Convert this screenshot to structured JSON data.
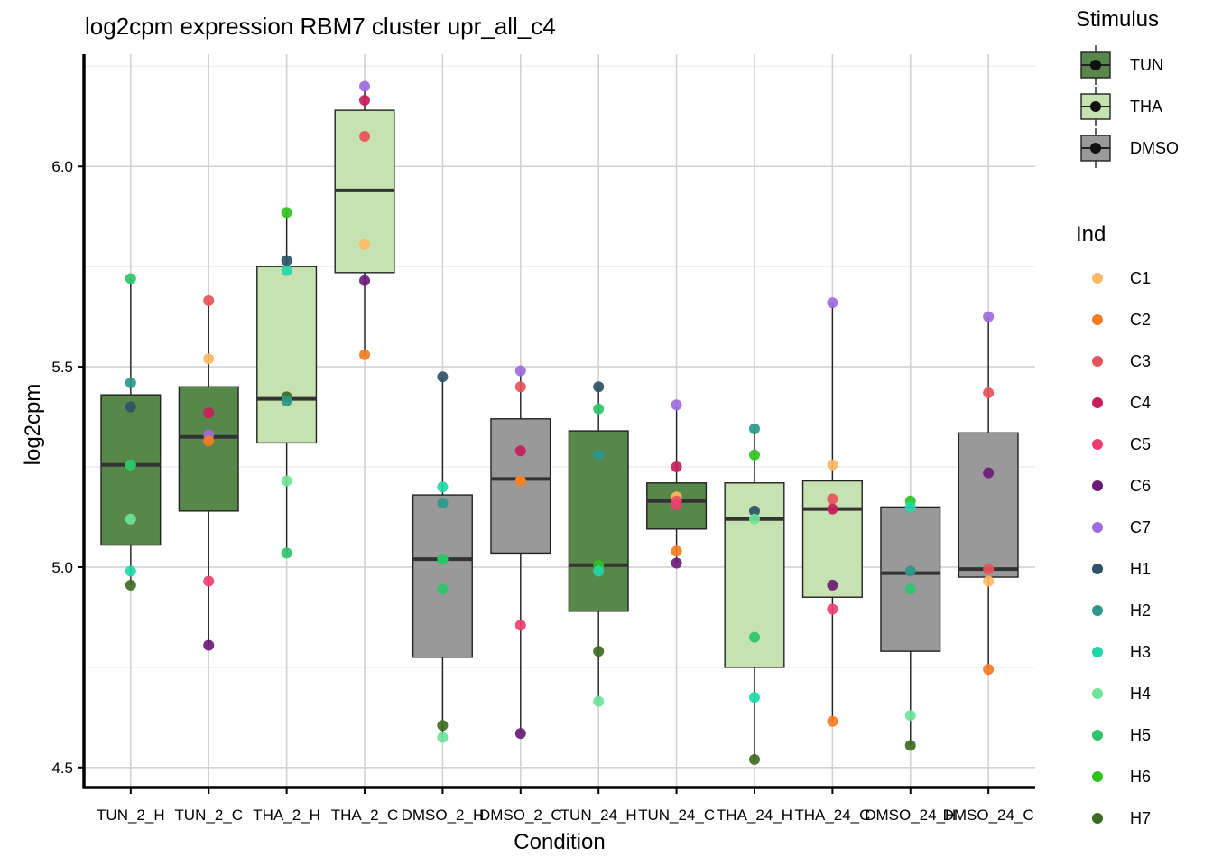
{
  "chart_data": {
    "type": "boxplot",
    "title": "log2cpm expression RBM7 cluster upr_all_c4",
    "xlabel": "Condition",
    "ylabel": "log2cpm",
    "ylim": [
      4.45,
      6.28
    ],
    "y_ticks": [
      4.5,
      5.0,
      5.5,
      6.0
    ],
    "y_tick_labels": [
      "4.5",
      "5.0",
      "5.5",
      "6.0"
    ],
    "categories": [
      "TUN_2_H",
      "TUN_2_C",
      "THA_2_H",
      "THA_2_C",
      "DMSO_2_H",
      "DMSO_2_C",
      "TUN_24_H",
      "TUN_24_C",
      "THA_24_H",
      "THA_24_C",
      "DMSO_24_H",
      "DMSO_24_C"
    ],
    "stimulus_legend": {
      "title": "Stimulus",
      "items": [
        {
          "name": "TUN",
          "color": "#57874A"
        },
        {
          "name": "THA",
          "color": "#C6E2B0"
        },
        {
          "name": "DMSO",
          "color": "#999999"
        }
      ]
    },
    "ind_legend": {
      "title": "Ind",
      "items": [
        {
          "name": "C1",
          "color": "#FDB863"
        },
        {
          "name": "C2",
          "color": "#F47D23"
        },
        {
          "name": "C3",
          "color": "#E8525A"
        },
        {
          "name": "C4",
          "color": "#C81D5A"
        },
        {
          "name": "C5",
          "color": "#EE3F70"
        },
        {
          "name": "C6",
          "color": "#6A1B78"
        },
        {
          "name": "C7",
          "color": "#9E6BDE"
        },
        {
          "name": "H1",
          "color": "#2F5366"
        },
        {
          "name": "H2",
          "color": "#2B9889"
        },
        {
          "name": "H3",
          "color": "#1FD8A8"
        },
        {
          "name": "H4",
          "color": "#6EE39A"
        },
        {
          "name": "H5",
          "color": "#2DC46A"
        },
        {
          "name": "H6",
          "color": "#2EC41E"
        },
        {
          "name": "H7",
          "color": "#3E6B24"
        }
      ]
    },
    "boxes": [
      {
        "category": "TUN_2_H",
        "stimulus": "TUN",
        "min": 4.955,
        "q1": 5.055,
        "median": 5.255,
        "q3": 5.43,
        "max": 5.72
      },
      {
        "category": "TUN_2_C",
        "stimulus": "TUN",
        "min": 4.805,
        "q1": 5.14,
        "median": 5.325,
        "q3": 5.45,
        "max": 5.665
      },
      {
        "category": "THA_2_H",
        "stimulus": "THA",
        "min": 5.035,
        "q1": 5.31,
        "median": 5.42,
        "q3": 5.75,
        "max": 5.885
      },
      {
        "category": "THA_2_C",
        "stimulus": "THA",
        "min": 5.53,
        "q1": 5.735,
        "median": 5.94,
        "q3": 6.14,
        "max": 6.2
      },
      {
        "category": "DMSO_2_H",
        "stimulus": "DMSO",
        "min": 4.575,
        "q1": 4.775,
        "median": 5.02,
        "q3": 5.18,
        "max": 5.475
      },
      {
        "category": "DMSO_2_C",
        "stimulus": "DMSO",
        "min": 4.585,
        "q1": 5.035,
        "median": 5.22,
        "q3": 5.37,
        "max": 5.49
      },
      {
        "category": "TUN_24_H",
        "stimulus": "TUN",
        "min": 4.665,
        "q1": 4.89,
        "median": 5.005,
        "q3": 5.34,
        "max": 5.45
      },
      {
        "category": "TUN_24_C",
        "stimulus": "TUN",
        "min": 5.01,
        "q1": 5.095,
        "median": 5.165,
        "q3": 5.21,
        "max": 5.4
      },
      {
        "category": "THA_24_H",
        "stimulus": "THA",
        "min": 4.52,
        "q1": 4.75,
        "median": 5.12,
        "q3": 5.21,
        "max": 5.345
      },
      {
        "category": "THA_24_C",
        "stimulus": "THA",
        "min": 4.615,
        "q1": 4.925,
        "median": 5.145,
        "q3": 5.215,
        "max": 5.66
      },
      {
        "category": "DMSO_24_H",
        "stimulus": "DMSO",
        "min": 4.555,
        "q1": 4.79,
        "median": 4.985,
        "q3": 5.15,
        "max": 5.165
      },
      {
        "category": "DMSO_24_C",
        "stimulus": "DMSO",
        "min": 4.745,
        "q1": 4.975,
        "median": 4.995,
        "q3": 5.335,
        "max": 5.625
      }
    ],
    "points": [
      {
        "category": "TUN_2_H",
        "values": [
          [
            "H5",
            5.72
          ],
          [
            "H2",
            5.46
          ],
          [
            "H1",
            5.4
          ],
          [
            "H6",
            5.255
          ],
          [
            "H5",
            5.255
          ],
          [
            "H4",
            5.12
          ],
          [
            "H3",
            4.99
          ],
          [
            "H7",
            4.955
          ]
        ]
      },
      {
        "category": "TUN_2_C",
        "values": [
          [
            "C3",
            5.665
          ],
          [
            "C1",
            5.52
          ],
          [
            "C4",
            5.385
          ],
          [
            "C7",
            5.33
          ],
          [
            "C2",
            5.315
          ],
          [
            "C5",
            4.965
          ],
          [
            "C6",
            4.805
          ]
        ]
      },
      {
        "category": "THA_2_H",
        "values": [
          [
            "H6",
            5.885
          ],
          [
            "H1",
            5.765
          ],
          [
            "H3",
            5.74
          ],
          [
            "H7",
            5.425
          ],
          [
            "H2",
            5.415
          ],
          [
            "H4",
            5.215
          ],
          [
            "H5",
            5.035
          ]
        ]
      },
      {
        "category": "THA_2_C",
        "values": [
          [
            "C7",
            6.2
          ],
          [
            "C4",
            6.165
          ],
          [
            "C3",
            6.075
          ],
          [
            "C1",
            5.805
          ],
          [
            "C6",
            5.715
          ],
          [
            "C2",
            5.53
          ]
        ]
      },
      {
        "category": "DMSO_2_H",
        "values": [
          [
            "H1",
            5.475
          ],
          [
            "H3",
            5.2
          ],
          [
            "H2",
            5.16
          ],
          [
            "H6",
            5.02
          ],
          [
            "H5",
            5.02
          ],
          [
            "H5",
            4.945
          ],
          [
            "H7",
            4.605
          ],
          [
            "H4",
            4.575
          ]
        ]
      },
      {
        "category": "DMSO_2_C",
        "values": [
          [
            "C7",
            5.49
          ],
          [
            "C3",
            5.45
          ],
          [
            "C4",
            5.29
          ],
          [
            "C1",
            5.215
          ],
          [
            "C2",
            5.215
          ],
          [
            "C5",
            4.855
          ],
          [
            "C6",
            4.585
          ]
        ]
      },
      {
        "category": "TUN_24_H",
        "values": [
          [
            "H1",
            5.45
          ],
          [
            "H5",
            5.395
          ],
          [
            "H2",
            5.28
          ],
          [
            "H6",
            5.005
          ],
          [
            "H3",
            4.99
          ],
          [
            "H7",
            4.79
          ],
          [
            "H4",
            4.665
          ]
        ]
      },
      {
        "category": "TUN_24_C",
        "values": [
          [
            "C7",
            5.405
          ],
          [
            "C4",
            5.25
          ],
          [
            "C1",
            5.175
          ],
          [
            "C3",
            5.165
          ],
          [
            "C5",
            5.155
          ],
          [
            "C2",
            5.04
          ],
          [
            "C6",
            5.01
          ]
        ]
      },
      {
        "category": "THA_24_H",
        "values": [
          [
            "H2",
            5.345
          ],
          [
            "H6",
            5.28
          ],
          [
            "H1",
            5.14
          ],
          [
            "H4",
            5.12
          ],
          [
            "H5",
            4.825
          ],
          [
            "H3",
            4.675
          ],
          [
            "H7",
            4.52
          ]
        ]
      },
      {
        "category": "THA_24_C",
        "values": [
          [
            "C7",
            5.66
          ],
          [
            "C1",
            5.255
          ],
          [
            "C3",
            5.17
          ],
          [
            "C4",
            5.145
          ],
          [
            "C6",
            4.955
          ],
          [
            "C5",
            4.895
          ],
          [
            "C2",
            4.615
          ]
        ]
      },
      {
        "category": "DMSO_24_H",
        "values": [
          [
            "H6",
            5.165
          ],
          [
            "H3",
            5.15
          ],
          [
            "H2",
            4.99
          ],
          [
            "H5",
            4.945
          ],
          [
            "H4",
            4.63
          ],
          [
            "H7",
            4.555
          ]
        ]
      },
      {
        "category": "DMSO_24_C",
        "values": [
          [
            "C7",
            5.625
          ],
          [
            "C3",
            5.435
          ],
          [
            "C6",
            5.235
          ],
          [
            "C3",
            4.995
          ],
          [
            "C1",
            4.965
          ],
          [
            "C2",
            4.745
          ]
        ]
      }
    ]
  }
}
